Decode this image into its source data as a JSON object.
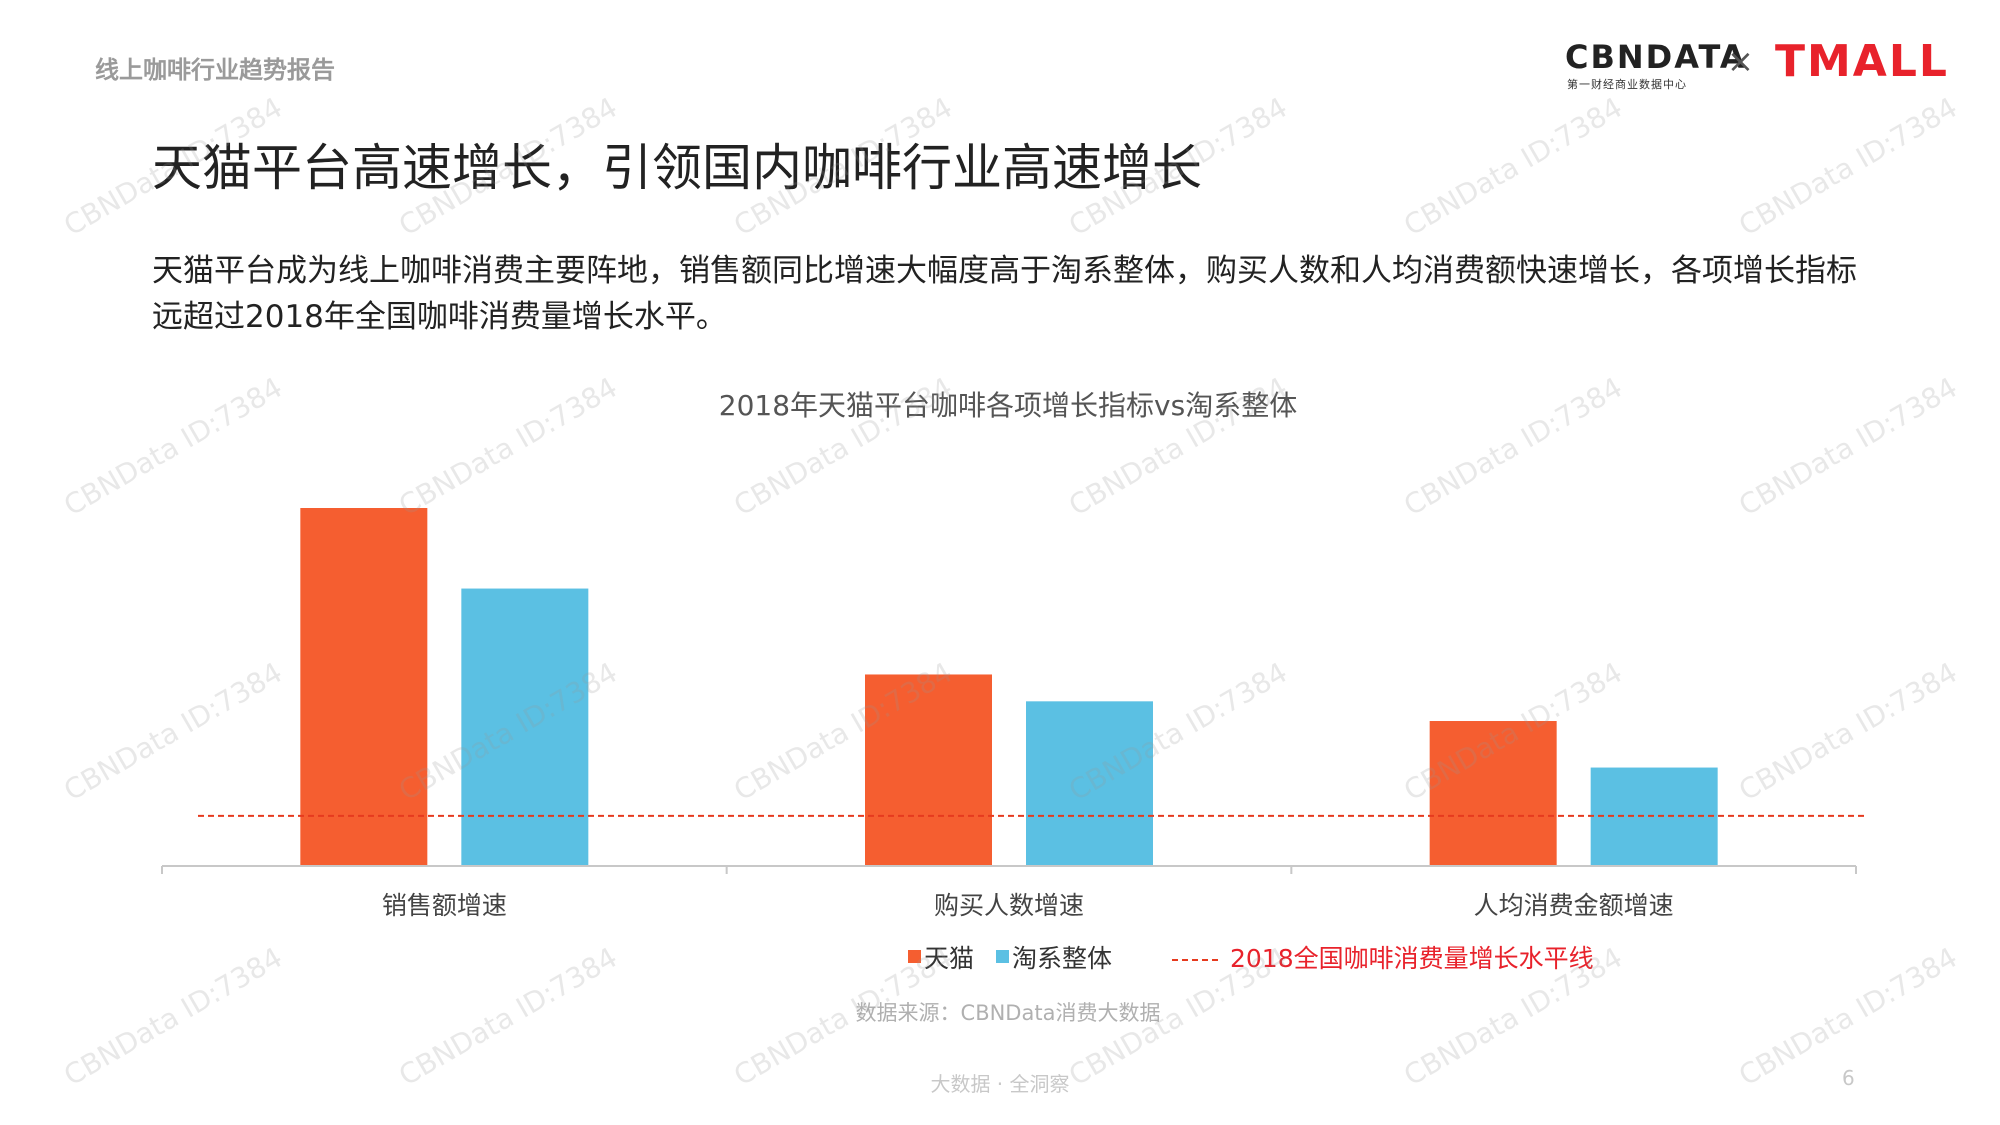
{
  "header": {
    "report_label": "线上咖啡行业趋势报告",
    "logo_cbn": "CBNDATA",
    "logo_cbn_sub": "第一财经商业数据中心",
    "logo_x": "×",
    "logo_tmall": "TMALL"
  },
  "slide": {
    "title": "天猫平台高速增长，引领国内咖啡行业高速增长",
    "description": "天猫平台成为线上咖啡消费主要阵地，销售额同比增速大幅度高于淘系整体，购买人数和人均消费额快速增长，各项增长指标远超过2018年全国咖啡消费量增长水平。"
  },
  "colors": {
    "tmall": "#f55e30",
    "taoxi": "#5bc0e3",
    "reference_line": "#e63a1e",
    "axis": "#c8c8c8",
    "reference_label": "#e8222b"
  },
  "chart_data": {
    "type": "bar",
    "title": "2018年天猫平台咖啡各项增长指标vs淘系整体",
    "categories": [
      "销售额增速",
      "购买人数增速",
      "人均消费金额增速"
    ],
    "series": [
      {
        "name": "天猫",
        "values": [
          100,
          53.5,
          40.5
        ]
      },
      {
        "name": "淘系整体",
        "values": [
          77.5,
          46,
          27.5
        ]
      }
    ],
    "reference_line": {
      "name": "2018全国咖啡消费量增长水平线",
      "value": 14
    },
    "ylim": [
      0,
      100
    ],
    "legend_position": "bottom",
    "grid": false,
    "source": "数据来源：CBNData消费大数据"
  },
  "footer": {
    "tagline": "大数据 · 全洞察",
    "page_number": "6"
  },
  "watermark": "CBNData ID:7384"
}
